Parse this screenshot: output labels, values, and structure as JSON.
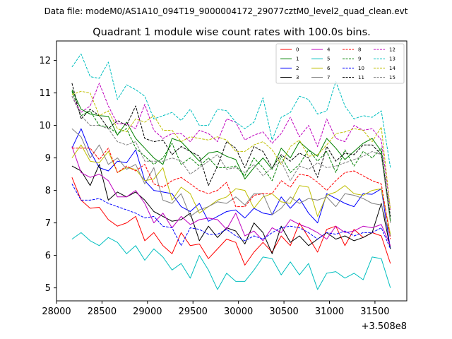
{
  "suptitle": "Data file: modeM0/AS1A10_094T19_9000004172_29077cztM0_level2_quad_clean.evt",
  "chart_data": {
    "type": "line",
    "title": "Quadrant 1 module wise count rates with 100.0s bins.",
    "xlabel": "",
    "ylabel": "",
    "x_offset_label": "+3.508e8",
    "xlim": [
      28000,
      31850
    ],
    "ylim": [
      4.6,
      12.6
    ],
    "xticks": [
      28000,
      28500,
      29000,
      29500,
      30000,
      30500,
      31000,
      31500
    ],
    "yticks": [
      5,
      6,
      7,
      8,
      9,
      10,
      11,
      12
    ],
    "legend_location": "upper right",
    "x": [
      28170,
      28270,
      28370,
      28470,
      28570,
      28670,
      28770,
      28870,
      28970,
      29070,
      29170,
      29270,
      29370,
      29470,
      29570,
      29670,
      29770,
      29870,
      29970,
      30070,
      30170,
      30270,
      30370,
      30470,
      30570,
      30670,
      30770,
      30870,
      30970,
      31070,
      31170,
      31270,
      31370,
      31470,
      31570,
      31670
    ],
    "series": [
      {
        "name": "0",
        "color": "#ff0000",
        "dash": "solid",
        "values": [
          8.4,
          7.7,
          7.45,
          7.48,
          7.1,
          6.9,
          7.0,
          7.2,
          6.45,
          6.7,
          6.3,
          6.05,
          6.7,
          6.3,
          6.35,
          5.9,
          6.2,
          6.5,
          6.4,
          5.7,
          6.1,
          6.4,
          6.1,
          6.6,
          6.3,
          7.0,
          6.55,
          6.1,
          6.8,
          6.9,
          6.3,
          6.8,
          6.55,
          6.7,
          6.6,
          5.75
        ]
      },
      {
        "name": "1",
        "color": "#008000",
        "dash": "solid",
        "values": [
          11.1,
          10.5,
          10.35,
          10.3,
          10.28,
          9.7,
          10.1,
          9.6,
          9.3,
          9.0,
          8.8,
          9.6,
          9.5,
          9.2,
          8.9,
          9.15,
          9.2,
          9.05,
          8.95,
          8.35,
          8.7,
          9.0,
          8.65,
          9.3,
          9.0,
          9.5,
          9.25,
          9.05,
          9.6,
          9.3,
          8.95,
          9.2,
          9.45,
          9.6,
          9.2,
          7.05
        ]
      },
      {
        "name": "2",
        "color": "#0000ff",
        "dash": "solid",
        "values": [
          9.3,
          9.9,
          9.2,
          8.7,
          8.6,
          8.9,
          8.85,
          9.25,
          8.3,
          8.0,
          7.95,
          7.9,
          7.5,
          7.35,
          7.6,
          7.05,
          7.2,
          7.35,
          7.4,
          7.15,
          7.45,
          7.3,
          7.25,
          7.8,
          7.45,
          7.75,
          7.3,
          7.0,
          7.9,
          7.75,
          7.6,
          7.5,
          7.9,
          7.88,
          8.05,
          6.2
        ]
      },
      {
        "name": "3",
        "color": "#000000",
        "dash": "solid",
        "values": [
          8.75,
          8.6,
          8.15,
          8.8,
          7.7,
          7.95,
          7.8,
          7.95,
          7.7,
          7.35,
          7.2,
          7.05,
          7.1,
          7.3,
          6.45,
          6.9,
          6.55,
          6.85,
          6.75,
          6.35,
          7.0,
          6.7,
          6.05,
          6.9,
          6.4,
          6.6,
          6.3,
          6.5,
          6.7,
          6.5,
          6.6,
          6.45,
          6.55,
          6.7,
          7.6,
          6.2
        ]
      },
      {
        "name": "4",
        "color": "#bf00bf",
        "dash": "solid",
        "values": [
          9.35,
          8.55,
          8.4,
          8.5,
          8.3,
          7.8,
          7.8,
          8.0,
          7.6,
          7.0,
          7.3,
          6.85,
          7.2,
          6.95,
          7.1,
          7.15,
          7.1,
          6.8,
          7.3,
          6.6,
          6.75,
          6.45,
          6.85,
          6.7,
          7.1,
          6.95,
          6.85,
          6.7,
          6.5,
          6.9,
          6.7,
          6.75,
          6.9,
          6.85,
          6.95,
          6.3
        ]
      },
      {
        "name": "5",
        "color": "#00bfbf",
        "dash": "solid",
        "values": [
          6.5,
          6.7,
          6.45,
          6.3,
          6.55,
          6.4,
          6.05,
          6.3,
          5.85,
          6.2,
          5.95,
          5.55,
          5.75,
          5.3,
          6.0,
          5.55,
          4.95,
          5.45,
          5.2,
          5.2,
          5.55,
          5.95,
          5.9,
          5.4,
          5.8,
          5.4,
          5.75,
          4.95,
          5.45,
          5.5,
          5.3,
          5.45,
          5.25,
          5.95,
          5.9,
          5.0
        ]
      },
      {
        "name": "6",
        "color": "#bfbf00",
        "dash": "solid",
        "values": [
          9.0,
          9.4,
          8.9,
          8.85,
          9.2,
          8.55,
          8.7,
          8.65,
          8.3,
          8.35,
          8.7,
          7.7,
          8.1,
          7.9,
          7.3,
          7.5,
          7.7,
          7.8,
          8.05,
          8.0,
          7.45,
          7.8,
          7.9,
          7.65,
          7.6,
          8.15,
          8.1,
          7.2,
          7.85,
          7.95,
          8.15,
          7.9,
          7.85,
          8.0,
          8.05,
          6.65
        ]
      },
      {
        "name": "7",
        "color": "#808080",
        "dash": "solid",
        "values": [
          9.9,
          9.65,
          9.0,
          9.4,
          8.8,
          9.0,
          8.65,
          8.8,
          8.2,
          8.7,
          7.7,
          7.6,
          7.9,
          7.2,
          7.4,
          7.5,
          7.65,
          7.6,
          7.8,
          7.55,
          7.9,
          7.9,
          7.25,
          7.45,
          7.8,
          7.6,
          7.75,
          7.7,
          7.8,
          7.5,
          7.9,
          7.85,
          7.75,
          7.6,
          7.55,
          6.6
        ]
      },
      {
        "name": "8",
        "color": "#ff0000",
        "dash": "dashed",
        "values": [
          9.3,
          9.3,
          9.3,
          8.95,
          9.3,
          8.55,
          8.75,
          8.6,
          8.8,
          8.2,
          8.1,
          8.3,
          8.4,
          8.2,
          8.0,
          7.9,
          8.0,
          8.25,
          7.5,
          7.5,
          7.85,
          7.9,
          7.9,
          8.3,
          8.1,
          8.5,
          8.45,
          8.25,
          8.0,
          8.3,
          8.55,
          8.6,
          8.45,
          8.3,
          8.2,
          6.5
        ]
      },
      {
        "name": "9",
        "color": "#008000",
        "dash": "dashed",
        "values": [
          11.05,
          10.3,
          10.45,
          10.0,
          9.95,
          9.75,
          9.9,
          9.3,
          9.05,
          8.8,
          9.0,
          9.45,
          8.8,
          9.0,
          8.75,
          9.0,
          8.7,
          8.7,
          8.75,
          8.45,
          9.0,
          8.7,
          8.3,
          9.05,
          8.55,
          8.8,
          9.25,
          8.9,
          9.2,
          8.55,
          9.25,
          8.75,
          9.2,
          9.0,
          9.3,
          7.1
        ]
      },
      {
        "name": "10",
        "color": "#0000ff",
        "dash": "dashed",
        "values": [
          8.2,
          7.7,
          7.7,
          7.75,
          7.6,
          7.5,
          7.4,
          7.3,
          7.15,
          7.2,
          6.9,
          6.85,
          6.3,
          6.85,
          6.8,
          6.65,
          6.65,
          6.8,
          6.6,
          6.45,
          6.6,
          6.5,
          6.7,
          6.85,
          6.9,
          6.85,
          6.7,
          6.5,
          6.7,
          6.65,
          6.75,
          6.6,
          6.7,
          6.7,
          6.85,
          6.2
        ]
      },
      {
        "name": "11",
        "color": "#000000",
        "dash": "dashed",
        "values": [
          11.3,
          10.2,
          10.5,
          10.3,
          9.9,
          10.15,
          10.0,
          10.6,
          9.6,
          9.5,
          9.55,
          9.1,
          9.35,
          9.2,
          9.05,
          8.15,
          8.75,
          9.5,
          9.3,
          8.7,
          9.35,
          9.2,
          8.7,
          9.1,
          8.9,
          9.15,
          9.0,
          8.4,
          9.35,
          8.9,
          9.15,
          9.1,
          9.4,
          9.4,
          9.1,
          7.2
        ]
      },
      {
        "name": "12",
        "color": "#bf00bf",
        "dash": "dashed",
        "values": [
          10.9,
          10.4,
          10.6,
          11.3,
          10.6,
          10.05,
          10.05,
          9.9,
          10.65,
          9.85,
          9.6,
          9.75,
          9.75,
          9.5,
          9.85,
          9.75,
          9.5,
          10.2,
          10.1,
          9.55,
          9.7,
          9.8,
          9.45,
          9.75,
          10.25,
          9.65,
          10.0,
          9.35,
          10.2,
          9.6,
          9.5,
          10.0,
          9.85,
          9.9,
          9.55,
          7.4
        ]
      },
      {
        "name": "13",
        "color": "#00bfbf",
        "dash": "dashed",
        "values": [
          11.8,
          12.2,
          11.5,
          11.45,
          11.95,
          10.8,
          11.25,
          11.1,
          10.9,
          10.2,
          10.3,
          10.4,
          10.15,
          10.5,
          10.0,
          10.0,
          10.5,
          10.45,
          10.1,
          9.9,
          10.1,
          10.85,
          9.55,
          10.25,
          10.4,
          10.9,
          10.8,
          10.35,
          10.45,
          11.35,
          10.6,
          10.2,
          10.3,
          10.25,
          10.45,
          8.7
        ]
      },
      {
        "name": "14",
        "color": "#bfbf00",
        "dash": "dashed",
        "values": [
          10.95,
          11.05,
          11.0,
          10.3,
          10.45,
          9.9,
          9.8,
          10.2,
          10.1,
          10.3,
          9.85,
          9.85,
          9.5,
          9.65,
          9.6,
          9.55,
          9.65,
          9.55,
          9.2,
          9.2,
          9.4,
          9.5,
          9.25,
          8.8,
          9.35,
          9.55,
          9.05,
          9.1,
          9.4,
          9.75,
          9.8,
          9.9,
          9.85,
          9.5,
          9.95,
          7.4
        ]
      },
      {
        "name": "15",
        "color": "#808080",
        "dash": "dashed",
        "values": [
          10.9,
          10.3,
          10.0,
          10.0,
          9.9,
          9.5,
          9.4,
          9.5,
          8.9,
          8.9,
          8.9,
          9.0,
          8.9,
          8.5,
          8.7,
          8.9,
          9.1,
          8.65,
          8.7,
          8.55,
          8.8,
          8.45,
          8.7,
          8.9,
          8.3,
          8.75,
          8.65,
          8.85,
          8.7,
          8.75,
          8.85,
          8.95,
          9.05,
          9.2,
          9.1,
          7.0
        ]
      }
    ]
  }
}
